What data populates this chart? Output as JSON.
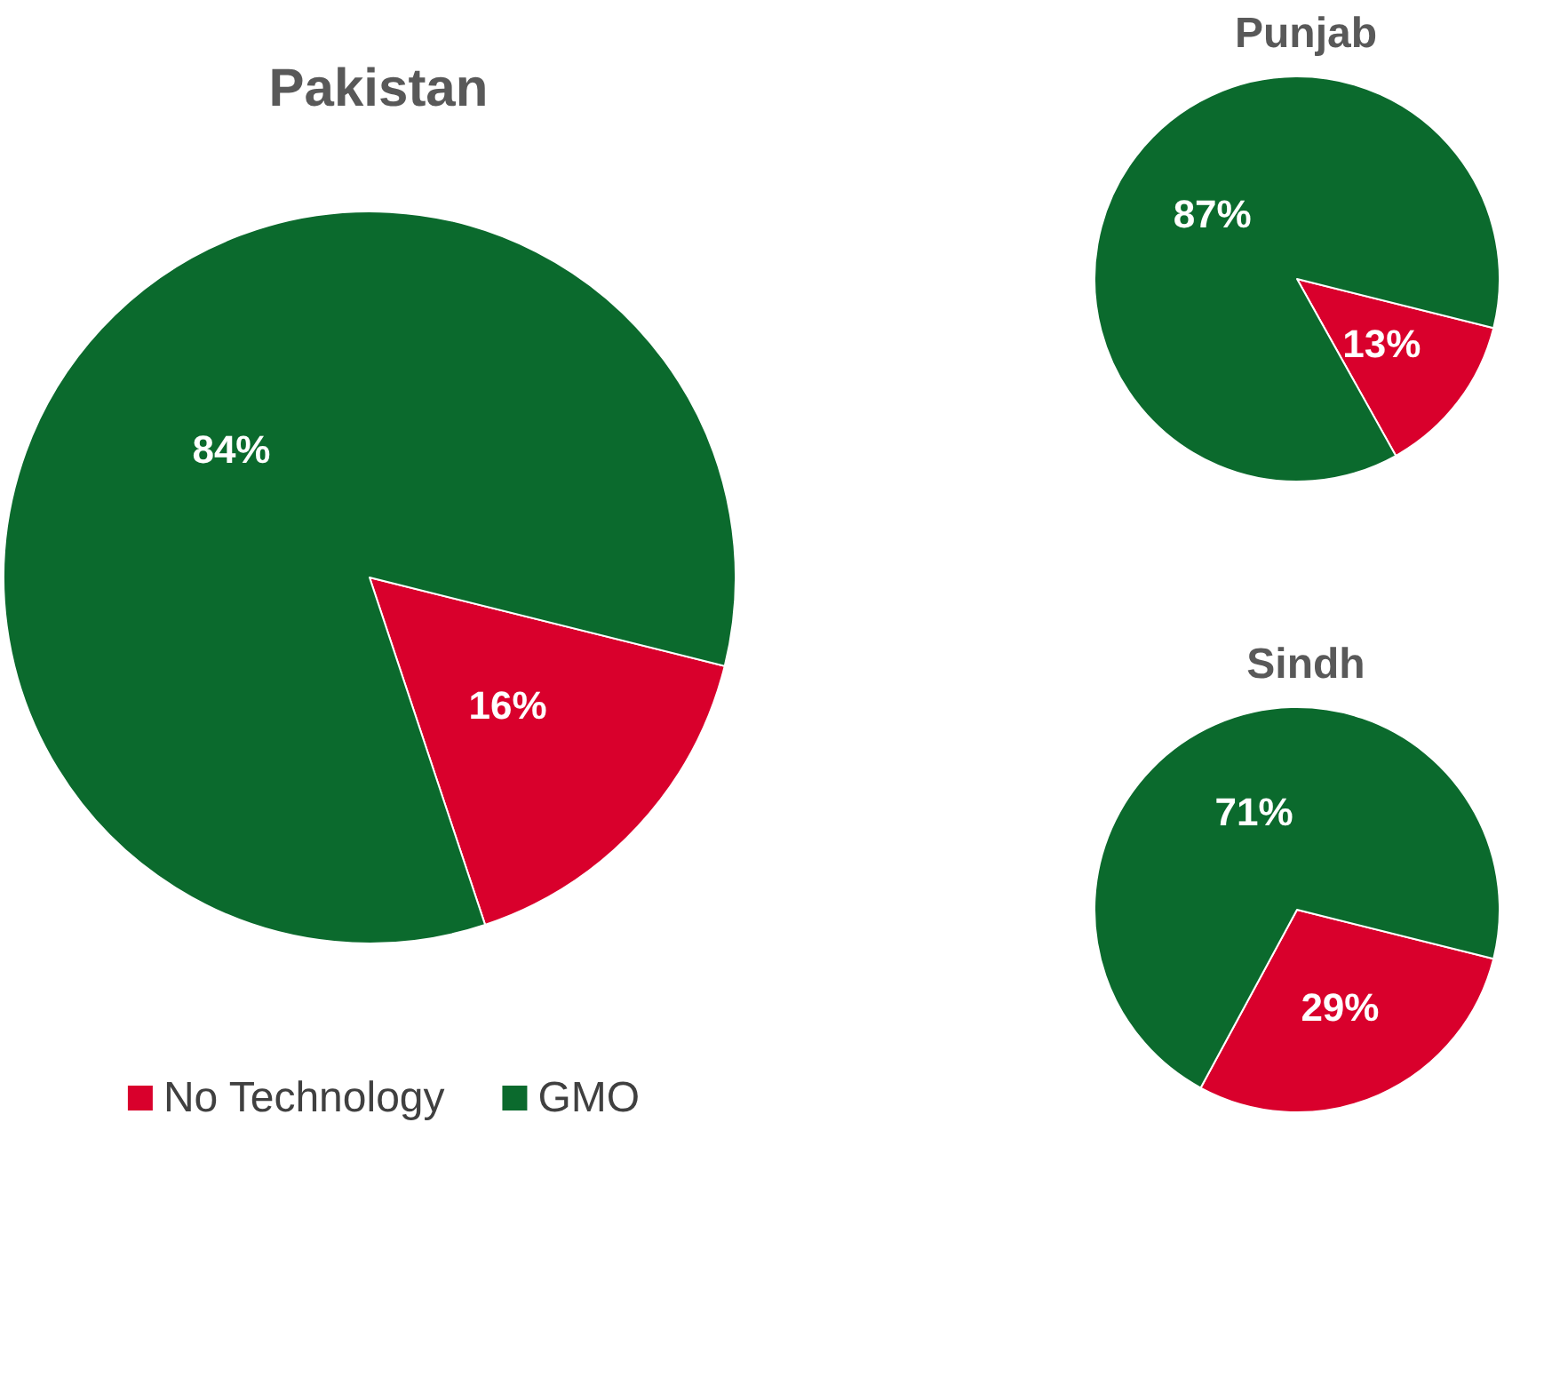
{
  "chart_data": [
    {
      "type": "pie",
      "title": "Pakistan",
      "categories": [
        "No Technology",
        "GMO"
      ],
      "values": [
        16,
        84
      ],
      "value_labels": [
        "16%",
        "84%"
      ],
      "colors": [
        "#d9002c",
        "#0b6a2d"
      ],
      "legend": "bottom"
    },
    {
      "type": "pie",
      "title": "Punjab",
      "categories": [
        null,
        null
      ],
      "values": [
        13,
        87
      ],
      "value_labels": [
        "13%",
        "87%"
      ],
      "colors": [
        "#d9002c",
        "#0b6a2d"
      ]
    },
    {
      "type": "pie",
      "title": "Sindh",
      "categories": [
        null,
        null
      ],
      "values": [
        29,
        71
      ],
      "value_labels": [
        "29%",
        "71%"
      ],
      "colors": [
        "#d9002c",
        "#0b6a2d"
      ]
    }
  ]
}
